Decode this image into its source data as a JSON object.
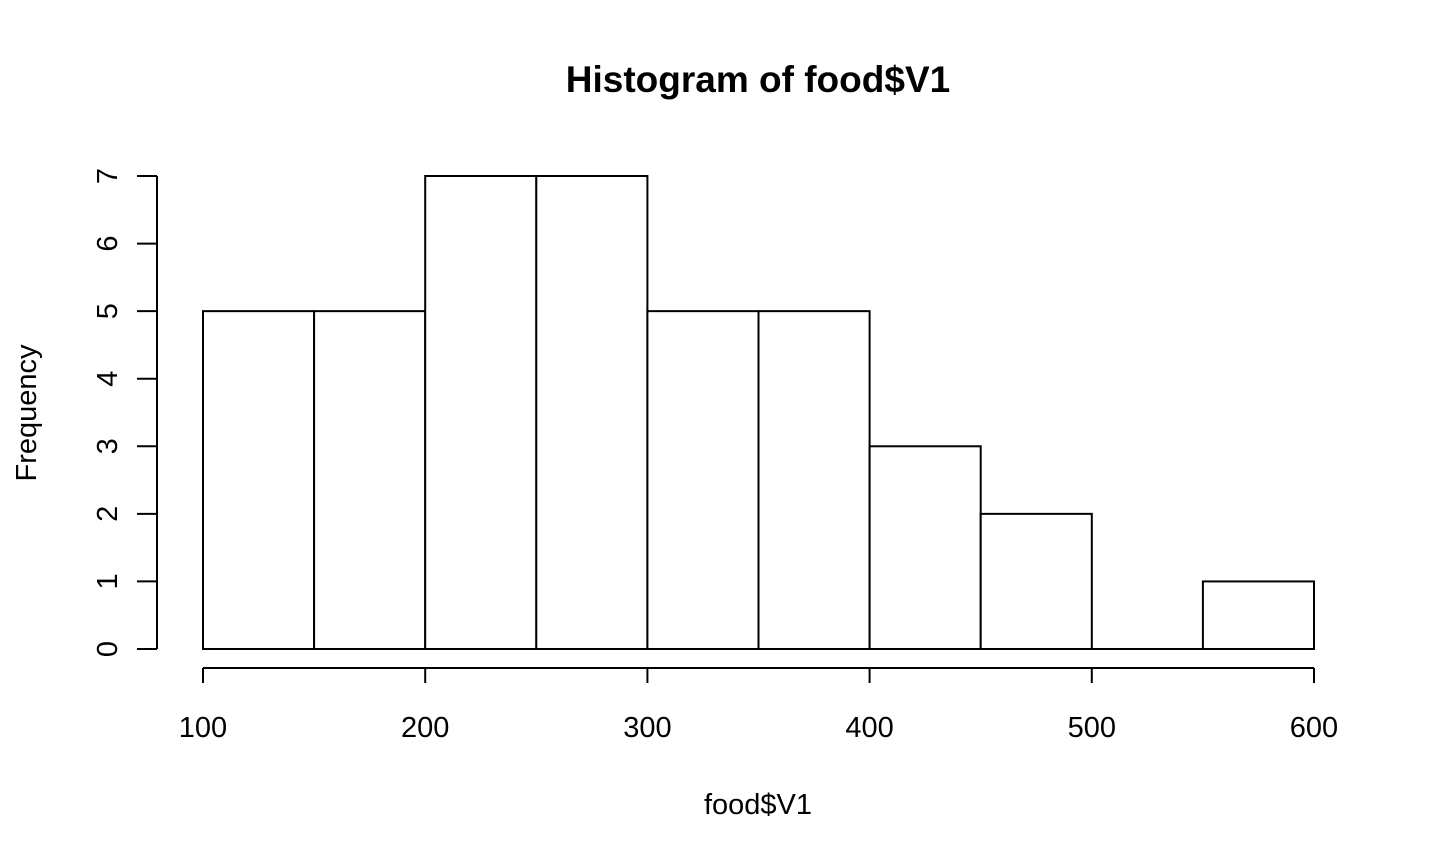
{
  "chart_data": {
    "type": "bar",
    "title": "Histogram of food$V1",
    "xlabel": "food$V1",
    "ylabel": "Frequency",
    "bins": [
      {
        "from": 100,
        "to": 150,
        "count": 5
      },
      {
        "from": 150,
        "to": 200,
        "count": 5
      },
      {
        "from": 200,
        "to": 250,
        "count": 7
      },
      {
        "from": 250,
        "to": 300,
        "count": 7
      },
      {
        "from": 300,
        "to": 350,
        "count": 5
      },
      {
        "from": 350,
        "to": 400,
        "count": 5
      },
      {
        "from": 400,
        "to": 450,
        "count": 3
      },
      {
        "from": 450,
        "to": 500,
        "count": 2
      },
      {
        "from": 500,
        "to": 550,
        "count": 0
      },
      {
        "from": 550,
        "to": 600,
        "count": 1
      }
    ],
    "xlim": [
      100,
      600
    ],
    "ylim": [
      0,
      7
    ],
    "x_ticks": [
      100,
      200,
      300,
      400,
      500,
      600
    ],
    "y_ticks": [
      0,
      1,
      2,
      3,
      4,
      5,
      6,
      7
    ],
    "grid": false,
    "colors": {
      "bar_fill": "#ffffff",
      "bar_stroke": "#000000"
    }
  }
}
